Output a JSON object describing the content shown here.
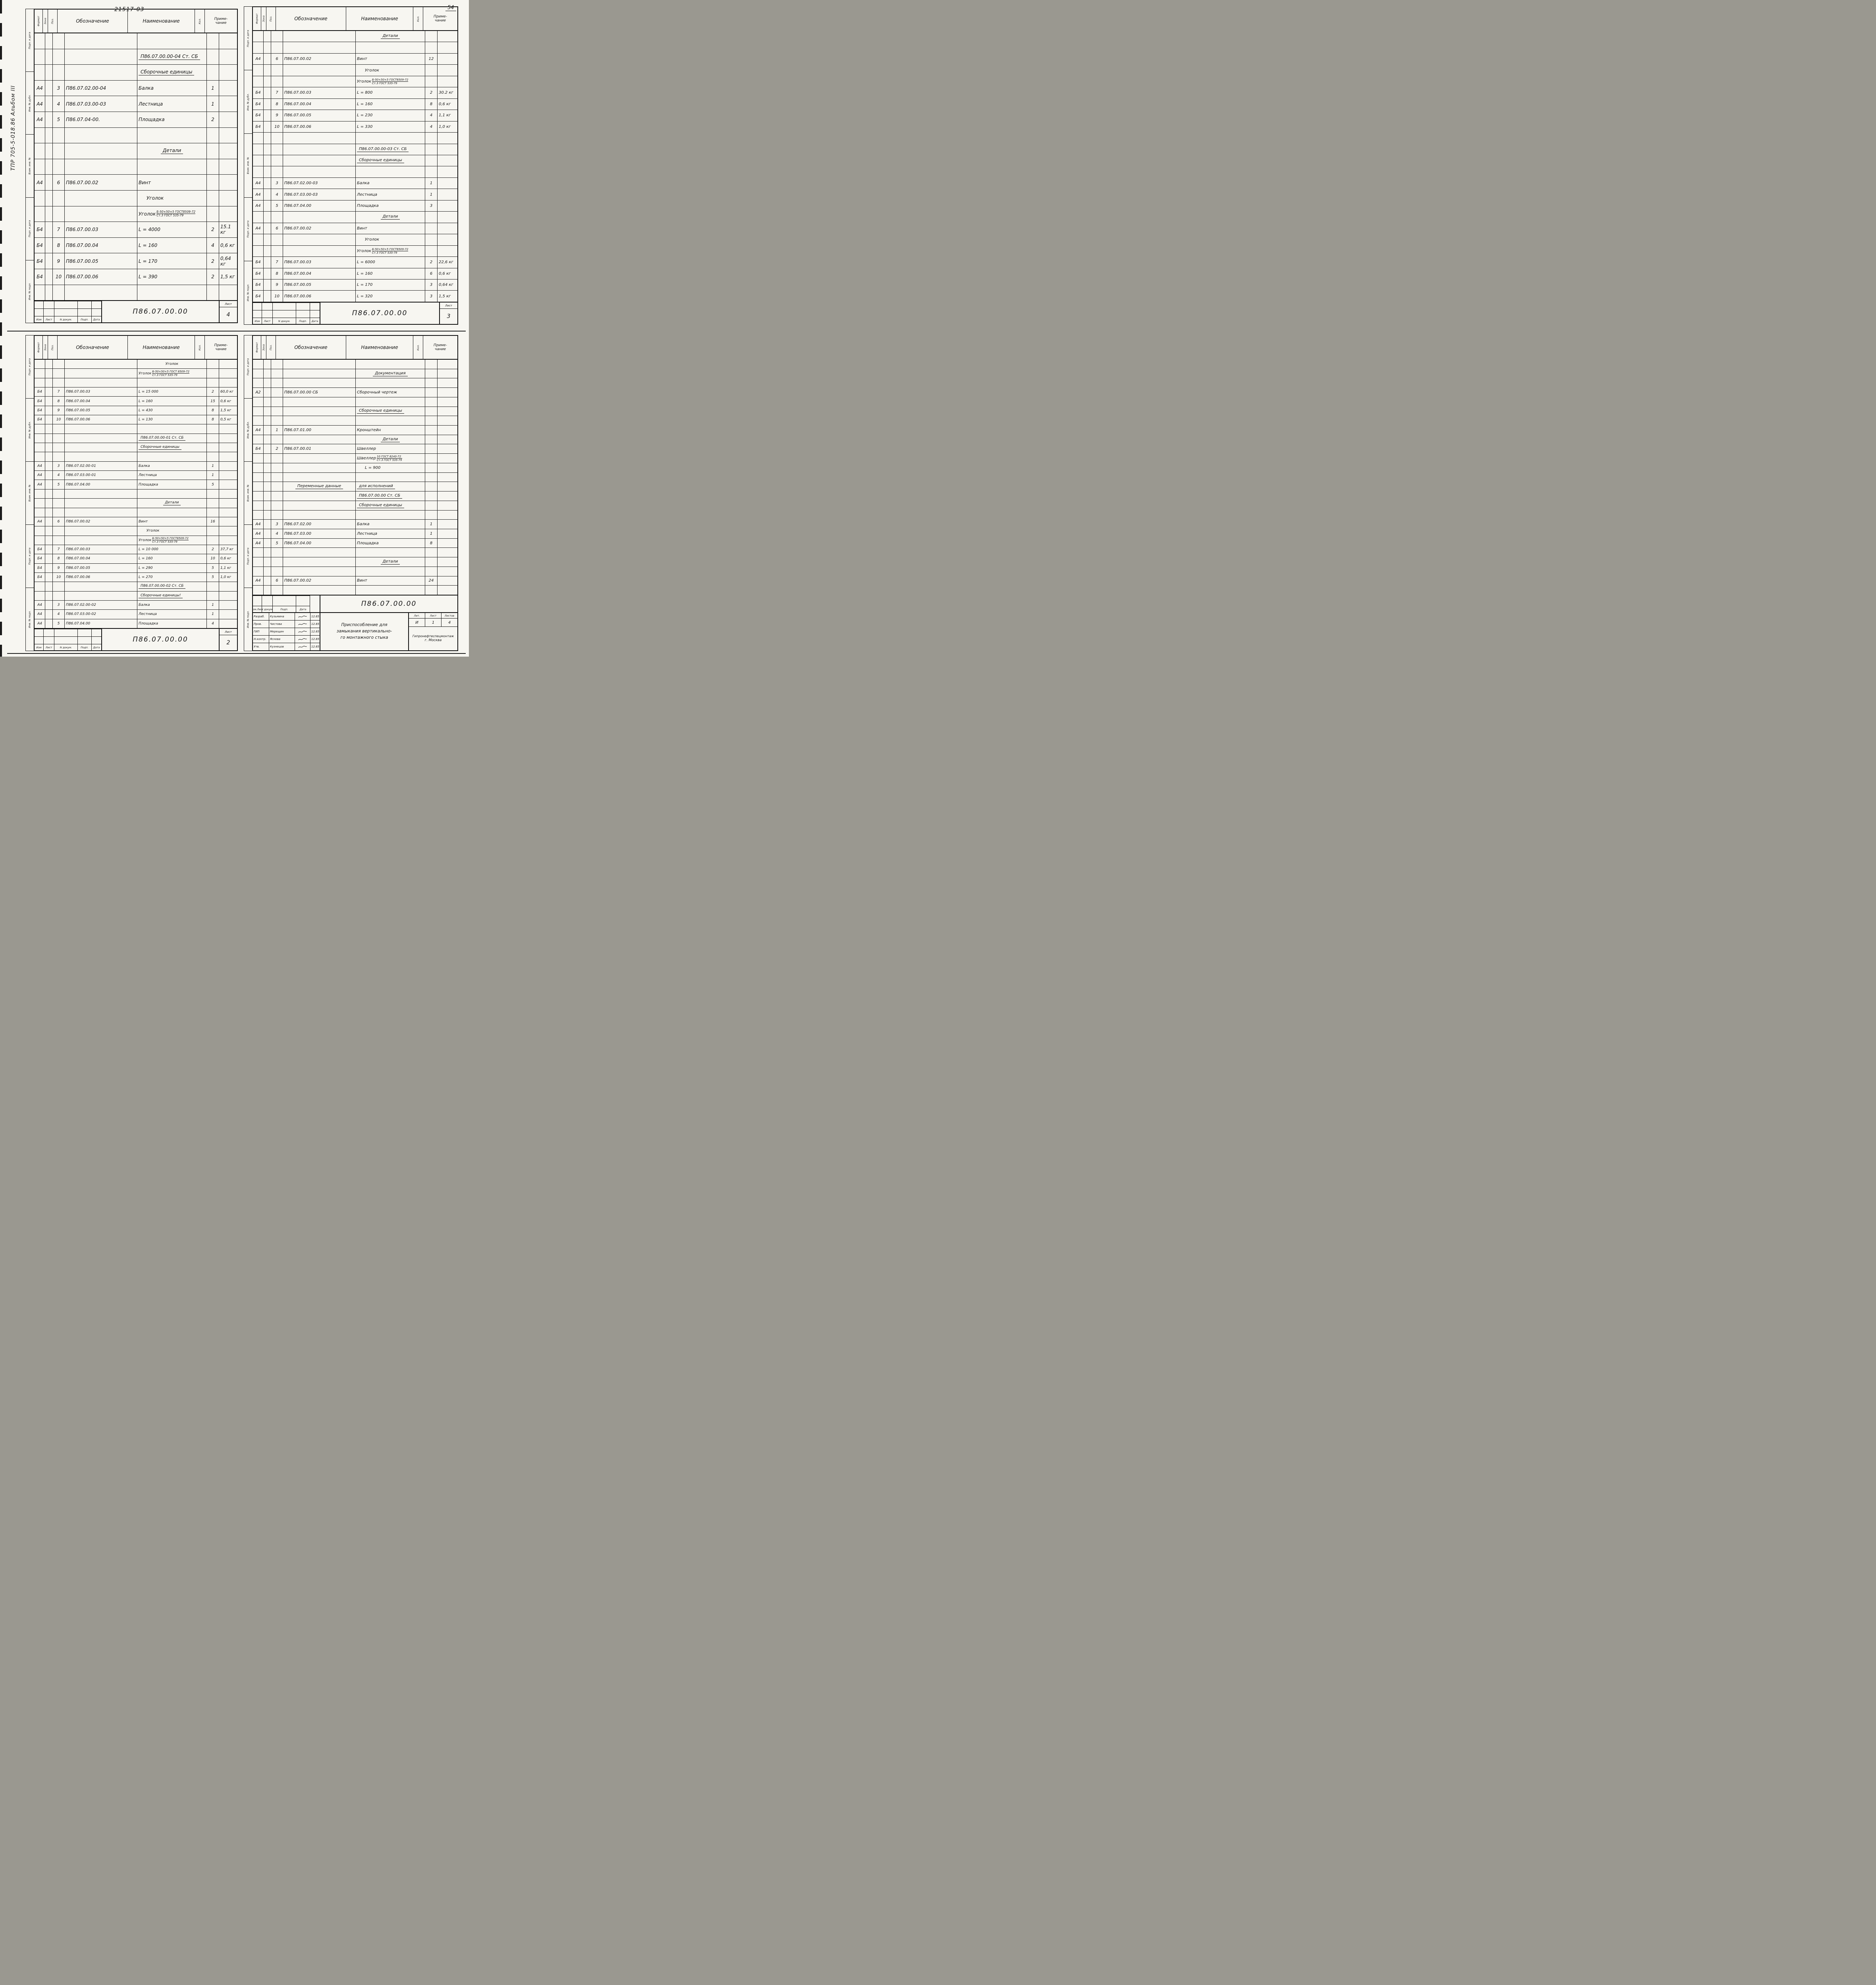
{
  "decorations": {
    "top_code": "21517-03",
    "page_number": "54",
    "album_label": "ТПР 705-5-018.86     Альбом III"
  },
  "columns": {
    "f": "Формат",
    "z": "Зона",
    "p": "Поз.",
    "d": "Обозначение",
    "n": "Наименование",
    "c": "Кол.",
    "r": "Приме-\nчание"
  },
  "pages": [
    {
      "name": "list-4",
      "margin": [
        "Подп. и дата",
        "Инв. № дубл.",
        "Взам. инв. №",
        "Подп. и дата",
        "Инв. № подл."
      ],
      "rows": [
        {
          "t": "blank"
        },
        {
          "t": "u",
          "n": "П86.07.00.00-04 Ст. СБ"
        },
        {
          "t": "u",
          "n": "Сборочные единицы"
        },
        {
          "t": "d",
          "f": "А4",
          "p": "3",
          "d": "П86.07.02.00-04",
          "n": "Балка",
          "c": "1"
        },
        {
          "t": "d",
          "f": "А4",
          "p": "4",
          "d": "П86.07.03.00-03",
          "n": "Лестница",
          "c": "1"
        },
        {
          "t": "d",
          "f": "А4",
          "p": "5",
          "d": "П86.07.04-00.",
          "n": "Площадка",
          "c": "2"
        },
        {
          "t": "blank"
        },
        {
          "t": "h",
          "n": "Детали"
        },
        {
          "t": "blank"
        },
        {
          "t": "d",
          "f": "А4",
          "p": "6",
          "d": "П86.07.00.02",
          "n": "Винт"
        },
        {
          "t": "n",
          "n": "Уголок"
        },
        {
          "t": "frac",
          "pre": "Уголок",
          "top": "Б-50×50×5 ГОСТ8509-72",
          "bot": "Ст.3 ГОСТ 535-79"
        },
        {
          "t": "d",
          "f": "Б4",
          "p": "7",
          "d": "П86.07.00.03",
          "n": "L = 4000",
          "c": "2",
          "r": "15.1 кг"
        },
        {
          "t": "d",
          "f": "Б4",
          "p": "8",
          "d": "П86.07.00.04",
          "n": "L = 160",
          "c": "4",
          "r": "0,6 кг"
        },
        {
          "t": "d",
          "f": "Б4",
          "p": "9",
          "d": "П86.07.00.05",
          "n": "L = 170",
          "c": "2",
          "r": "0,64 кг"
        },
        {
          "t": "d",
          "f": "Б4",
          "p": "10",
          "d": "П86.07.00.06",
          "n": "L = 390",
          "c": "2",
          "r": "1,5 кг"
        },
        {
          "t": "blank"
        }
      ],
      "titleblock": {
        "type": "small",
        "footer": [
          "Изм",
          "Лист",
          "N докум.",
          "Подп.",
          "Дата"
        ],
        "doc": "П86.07.00.00",
        "list_label": "Лист",
        "list": "4"
      }
    },
    {
      "name": "list-3",
      "margin": [
        "Подп. и дата",
        "Инв. № дубл.",
        "Взам. инв. №",
        "Подп. и дата",
        "Инв. № подл."
      ],
      "rows": [
        {
          "t": "h",
          "n": "Детали"
        },
        {
          "t": "blank"
        },
        {
          "t": "d",
          "f": "А4",
          "p": "6",
          "d": "П86.07.00.02",
          "n": "Винт",
          "c": "12"
        },
        {
          "t": "n",
          "n": "Уголок"
        },
        {
          "t": "frac",
          "pre": "Уголок",
          "top": "Б-50×50×5 ГОСТ8509-72",
          "bot": "Ст.3 ГОСТ 535-79"
        },
        {
          "t": "d",
          "f": "Б4",
          "p": "7",
          "d": "П86.07.00.03",
          "n": "L = 800",
          "c": "2",
          "r": "30.2 кг"
        },
        {
          "t": "d",
          "f": "Б4",
          "p": "8",
          "d": "П86.07.00.04",
          "n": "L = 160",
          "c": "8",
          "r": "0,6 кг"
        },
        {
          "t": "d",
          "f": "Б4",
          "p": "9",
          "d": "П86.07.00.05",
          "n": "L = 230",
          "c": "4",
          "r": "1,1 кг"
        },
        {
          "t": "d",
          "f": "Б4",
          "p": "10",
          "d": "П86.07.00.06",
          "n": "L = 330",
          "c": "4",
          "r": "1,0 кг"
        },
        {
          "t": "blank"
        },
        {
          "t": "u",
          "n": "П86.07.00.00-03 Ст. СБ"
        },
        {
          "t": "u",
          "n": "Сборочные единицы"
        },
        {
          "t": "blank"
        },
        {
          "t": "d",
          "f": "А4",
          "p": "3",
          "d": "П86.07.02.00-03",
          "n": "Балка",
          "c": "1"
        },
        {
          "t": "d",
          "f": "А4",
          "p": "4",
          "d": "П86.07.03.00-03",
          "n": "Лестница",
          "c": "1"
        },
        {
          "t": "d",
          "f": "А4",
          "p": "5",
          "d": "П86.07.04.00",
          "n": "Площадка",
          "c": "3"
        },
        {
          "t": "h",
          "n": "Детали"
        },
        {
          "t": "d",
          "f": "А4",
          "p": "6",
          "d": "П86.07.00.02",
          "n": "Винт"
        },
        {
          "t": "n",
          "n": "Уголок"
        },
        {
          "t": "frac",
          "pre": "Уголок",
          "top": "Б-50×50×5 ГОСТ8509-72",
          "bot": "Ст.3 ГОСТ 535-79"
        },
        {
          "t": "d",
          "f": "Б4",
          "p": "7",
          "d": "П86.07.00.03",
          "n": "L = 6000",
          "c": "2",
          "r": "22,6 кг"
        },
        {
          "t": "d",
          "f": "Б4",
          "p": "8",
          "d": "П86.07.00.04",
          "n": "L = 160",
          "c": "6",
          "r": "0,6 кг"
        },
        {
          "t": "d",
          "f": "Б4",
          "p": "9",
          "d": "П86.07.00.05",
          "n": "L = 170",
          "c": "3",
          "r": "0,64 кг"
        },
        {
          "t": "d",
          "f": "Б4",
          "p": "10",
          "d": "П86.07.00.06",
          "n": "L = 320",
          "c": "3",
          "r": "1,5 кг"
        }
      ],
      "titleblock": {
        "type": "small",
        "footer": [
          "Изм",
          "Лист",
          "N докум.",
          "Подп.",
          "Дата"
        ],
        "doc": "П86.07.00.00",
        "list_label": "Лист",
        "list": "3"
      }
    },
    {
      "name": "list-2",
      "margin": [
        "Подп. и дата",
        "Инв. № дубл.",
        "Взам. инв. №",
        "Подп. и дата",
        "Инв. № подл."
      ],
      "rows": [
        {
          "t": "c",
          "n": "Уголок"
        },
        {
          "t": "frac",
          "pre": "Уголок",
          "top": "Б-50×50×5 ГОСТ 8509-72",
          "bot": "Ст.3 ГОСТ 535-79"
        },
        {
          "t": "blank"
        },
        {
          "t": "d",
          "f": "Б4",
          "p": "7",
          "d": "П86.07.00.03",
          "n": "L = 15 000",
          "c": "2",
          "r": "60,0 кг"
        },
        {
          "t": "d",
          "f": "Б4",
          "p": "8",
          "d": "П86.07.00.04",
          "n": "L = 160",
          "c": "15",
          "r": "0,6 кг"
        },
        {
          "t": "d",
          "f": "Б4",
          "p": "9",
          "d": "П86.07.00.05",
          "n": "L = 430",
          "c": "8",
          "r": "1,5 кг"
        },
        {
          "t": "d",
          "f": "Б4",
          "p": "10",
          "d": "П86.07.00.06",
          "n": "L = 130",
          "c": "8",
          "r": "0,5 кг"
        },
        {
          "t": "blank"
        },
        {
          "t": "u",
          "n": "П86.07.00.00-01 Ст. СБ"
        },
        {
          "t": "u",
          "n": "Сборочные единицы"
        },
        {
          "t": "blank"
        },
        {
          "t": "d",
          "f": "А4",
          "p": "3",
          "d": "П86.07.02.00-01",
          "n": "Балка",
          "c": "1"
        },
        {
          "t": "d",
          "f": "А4",
          "p": "4",
          "d": "П86.07.03.00-01",
          "n": "Лестница",
          "c": "1"
        },
        {
          "t": "d",
          "f": "А4",
          "p": "5",
          "d": "П86.07.04.00",
          "n": "Площадка",
          "c": "5"
        },
        {
          "t": "blank"
        },
        {
          "t": "h",
          "n": "Детали"
        },
        {
          "t": "blank"
        },
        {
          "t": "d",
          "f": "А4",
          "p": "6",
          "d": "П86.07.00.02",
          "n": "Винт",
          "c": "16"
        },
        {
          "t": "n",
          "n": "Уголок"
        },
        {
          "t": "frac",
          "pre": "Уголок",
          "top": "Б-50×50×5 ГОСТ8509-72",
          "bot": "Ст.3 ГОСТ 535-79"
        },
        {
          "t": "d",
          "f": "Б4",
          "p": "7",
          "d": "П86.07.00.03",
          "n": "L = 10 000",
          "c": "2",
          "r": "37,7 кг"
        },
        {
          "t": "d",
          "f": "Б4",
          "p": "8",
          "d": "П86.07.00.04",
          "n": "L = 160",
          "c": "10",
          "r": "0,6 кг"
        },
        {
          "t": "d",
          "f": "Б4",
          "p": "9",
          "d": "П86.07.00.05",
          "n": "L = 290",
          "c": "5",
          "r": "1,1 кг"
        },
        {
          "t": "d",
          "f": "Б4",
          "p": "10",
          "d": "П86.07.00.06",
          "n": "L = 270",
          "c": "5",
          "r": "1,0 кг"
        },
        {
          "t": "u",
          "n": "П86.07.00.00-02 Ст. СБ"
        },
        {
          "t": "u",
          "n": "Сборочные единицы!"
        },
        {
          "t": "d",
          "f": "А4",
          "p": "3",
          "d": "П86.07.02.00-02",
          "n": "Балка",
          "c": "1"
        },
        {
          "t": "d",
          "f": "А4",
          "p": "4",
          "d": "П86.07.03.00-02",
          "n": "Лестница",
          "c": "1"
        },
        {
          "t": "d",
          "f": "А4",
          "p": "5",
          "d": "П86.07.04.00",
          "n": "Площадка",
          "c": "4"
        }
      ],
      "titleblock": {
        "type": "small",
        "footer": [
          "Изм",
          "Лист",
          "N докум.",
          "Подп.",
          "Дата"
        ],
        "doc": "П86.07.00.00",
        "list_label": "Лист",
        "list": "2"
      }
    },
    {
      "name": "list-1",
      "margin": [
        "Подп. и дата",
        "Инв. № дубл.",
        "Взам. инв. №",
        "Подп. и дата",
        "Инв. № подл."
      ],
      "rows": [
        {
          "t": "blank"
        },
        {
          "t": "h",
          "n": "Документация"
        },
        {
          "t": "blank"
        },
        {
          "t": "d",
          "f": "А2",
          "p": "",
          "d": "П86.07.00.00 СБ",
          "n": "Сборочный чертеж"
        },
        {
          "t": "blank"
        },
        {
          "t": "u",
          "n": "Сборочные единицы"
        },
        {
          "t": "blank"
        },
        {
          "t": "d",
          "f": "А4",
          "p": "1",
          "d": "П86.07.01.00",
          "n": "Кронштейн"
        },
        {
          "t": "h",
          "n": "Детали"
        },
        {
          "t": "d",
          "f": "Б4",
          "p": "2",
          "d": "П86.07.00.01",
          "n": "Швеллер"
        },
        {
          "t": "frac",
          "pre": "Швеллер",
          "top": "10 ГОСТ 8240-72",
          "bot": "Ст.3 ГОСТ 535-79"
        },
        {
          "t": "n",
          "n": "L = 900"
        },
        {
          "t": "blank"
        },
        {
          "t": "du",
          "d": "Переменные данные",
          "n": "для исполнений"
        },
        {
          "t": "u",
          "n": "П86.07.00.00 Ст. СБ"
        },
        {
          "t": "u",
          "n": "Сборочные единицы"
        },
        {
          "t": "blank"
        },
        {
          "t": "d",
          "f": "А4",
          "p": "3",
          "d": "П86.07.02.00",
          "n": "Балка",
          "c": "1"
        },
        {
          "t": "d",
          "f": "А4",
          "p": "4",
          "d": "П86.07.03.00",
          "n": "Лестница",
          "c": "1"
        },
        {
          "t": "d",
          "f": "А4",
          "p": "5",
          "d": "П86.07.04.00",
          "n": "Площадка",
          "c": "8"
        },
        {
          "t": "blank"
        },
        {
          "t": "h",
          "n": "Детали"
        },
        {
          "t": "blank"
        },
        {
          "t": "d",
          "f": "А4",
          "p": "6",
          "d": "П86.07.00.02",
          "n": "Винт",
          "c": "24"
        },
        {
          "t": "blank"
        }
      ],
      "titleblock": {
        "type": "big",
        "doc": "П86.07.00.00",
        "header_cells": [
          "Изм.Лист",
          "N докум.",
          "Подп.",
          "Дата"
        ],
        "sig_rows": [
          {
            "role": "Разраб.",
            "name": "Кузьмина",
            "date": "12.85"
          },
          {
            "role": "Пров.",
            "name": "Чистова",
            "date": "12.85"
          },
          {
            "role": "ГИП",
            "name": "Мерещин",
            "date": "12.85"
          },
          {
            "role": "Н.контр.",
            "name": "Яснова",
            "date": "12.85"
          },
          {
            "role": "Утв.",
            "name": "Кузнецов",
            "date": "12.85"
          }
        ],
        "title": "Приспособление для\nзамыкания вертикально-\nго монтажного стыка",
        "lit_label": "Лит.",
        "list_label": "Лист",
        "listov_label": "Листов",
        "lit": "И",
        "list": "1",
        "listov": "4",
        "org": "Гипронефтеспецмонтаж",
        "org_city": "г. Москва"
      }
    }
  ]
}
